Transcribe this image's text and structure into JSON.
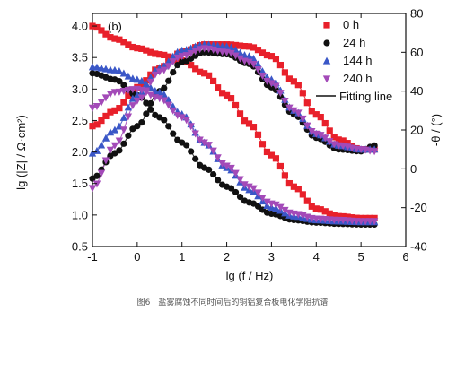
{
  "caption": "图6　盐雾腐蚀不同时间后的铜铝复合板电化学阻抗谱",
  "chart_data": {
    "type": "scatter",
    "panel_label": "(b)",
    "xlabel": "lg (f / Hz)",
    "ylabel_left": "lg (|Z| / Ω·cm²)",
    "ylabel_right": "-θ / (°)",
    "xlim": [
      -1,
      6
    ],
    "ylim_left": [
      0.5,
      4.2
    ],
    "ylim_right": [
      -40,
      80
    ],
    "xticks": [
      "-1",
      "0",
      "1",
      "2",
      "3",
      "4",
      "5",
      "6"
    ],
    "yticks_left": [
      "0.5",
      "1.0",
      "1.5",
      "2.0",
      "2.5",
      "3.0",
      "3.5",
      "4.0"
    ],
    "yticks_right": [
      "-40",
      "-20",
      "0",
      "20",
      "40",
      "60",
      "80"
    ],
    "legend_position": "top-right",
    "fit_label": "Fitting line",
    "series": [
      {
        "name": "0 h",
        "marker": "square",
        "color": "#e8202a",
        "modulus": {
          "x": [
            -1.0,
            -0.5,
            0.0,
            0.5,
            1.0,
            1.5,
            2.0,
            2.5,
            3.0,
            3.5,
            4.0,
            4.5,
            5.0,
            5.3
          ],
          "y": [
            4.0,
            3.8,
            3.65,
            3.55,
            3.45,
            3.25,
            2.9,
            2.45,
            1.95,
            1.45,
            1.1,
            0.98,
            0.95,
            0.95
          ]
        },
        "phase": {
          "x": [
            -1.0,
            -0.5,
            0.0,
            0.5,
            1.0,
            1.5,
            2.0,
            2.5,
            3.0,
            3.5,
            4.0,
            4.5,
            5.0,
            5.3
          ],
          "y": [
            22,
            30,
            42,
            52,
            60,
            64,
            64,
            63,
            58,
            45,
            28,
            15,
            10,
            10
          ]
        }
      },
      {
        "name": "24 h",
        "marker": "circle",
        "color": "#111111",
        "modulus": {
          "x": [
            -1.0,
            -0.5,
            0.0,
            0.5,
            1.0,
            1.5,
            2.0,
            2.5,
            3.0,
            3.5,
            4.0,
            4.5,
            5.0,
            5.3
          ],
          "y": [
            3.25,
            3.15,
            2.9,
            2.55,
            2.15,
            1.75,
            1.45,
            1.2,
            1.02,
            0.92,
            0.88,
            0.86,
            0.85,
            0.85
          ]
        },
        "phase": {
          "x": [
            -1.0,
            -0.5,
            0.0,
            0.5,
            1.0,
            1.5,
            2.0,
            2.5,
            3.0,
            3.5,
            4.0,
            4.5,
            5.0,
            5.3
          ],
          "y": [
            -5,
            8,
            22,
            40,
            55,
            60,
            59,
            54,
            42,
            28,
            16,
            10,
            9,
            12
          ]
        }
      },
      {
        "name": "144 h",
        "marker": "triangle-up",
        "color": "#3a57c7",
        "modulus": {
          "x": [
            -1.0,
            -0.5,
            0.0,
            0.5,
            1.0,
            1.5,
            2.0,
            2.5,
            3.0,
            3.5,
            4.0,
            4.5,
            5.0,
            5.3
          ],
          "y": [
            3.35,
            3.3,
            3.15,
            2.95,
            2.6,
            2.15,
            1.75,
            1.4,
            1.12,
            0.98,
            0.92,
            0.9,
            0.89,
            0.89
          ]
        },
        "phase": {
          "x": [
            -1.0,
            -0.5,
            0.0,
            0.5,
            1.0,
            1.5,
            2.0,
            2.5,
            3.0,
            3.5,
            4.0,
            4.5,
            5.0,
            5.3
          ],
          "y": [
            8,
            20,
            38,
            52,
            61,
            64,
            63,
            58,
            46,
            30,
            18,
            12,
            10,
            10
          ]
        }
      },
      {
        "name": "240 h",
        "marker": "triangle-down",
        "color": "#a34ab8",
        "modulus": {
          "x": [
            -1.0,
            -0.5,
            0.0,
            0.5,
            1.0,
            1.5,
            2.0,
            2.5,
            3.0,
            3.5,
            4.0,
            4.5,
            5.0,
            5.3
          ],
          "y": [
            2.7,
            2.95,
            3.0,
            2.85,
            2.55,
            2.15,
            1.78,
            1.45,
            1.18,
            1.02,
            0.94,
            0.92,
            0.9,
            0.9
          ]
        },
        "phase": {
          "x": [
            -1.0,
            -0.5,
            0.0,
            0.5,
            1.0,
            1.5,
            2.0,
            2.5,
            3.0,
            3.5,
            4.0,
            4.5,
            5.0,
            5.3
          ],
          "y": [
            -10,
            12,
            35,
            50,
            58,
            62,
            60,
            55,
            44,
            30,
            18,
            12,
            10,
            9
          ]
        }
      }
    ]
  }
}
